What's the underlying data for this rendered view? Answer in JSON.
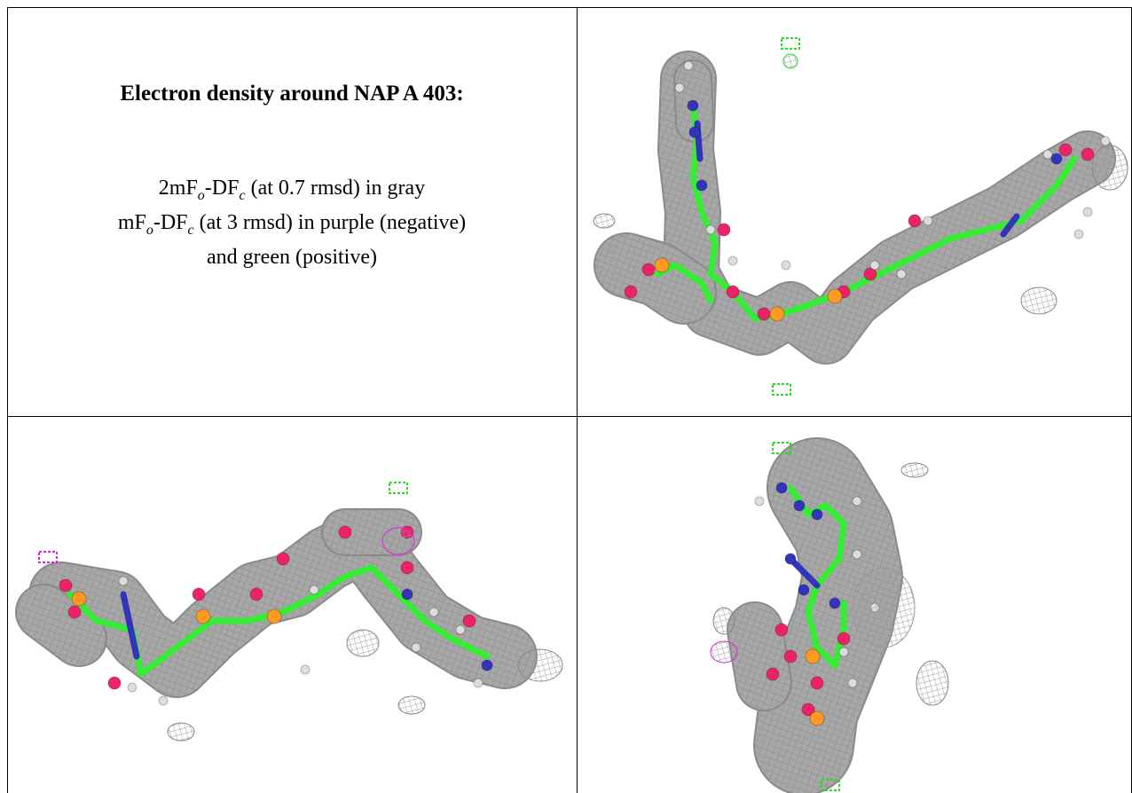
{
  "caption": {
    "title": "Electron density around NAP A 403:",
    "line1": {
      "pre": "2mF",
      "sub1": "o",
      "mid": "-DF",
      "sub2": "c",
      "post": " (at 0.7 rmsd) in gray"
    },
    "line2": {
      "pre": "mF",
      "sub1": "o",
      "mid": "-DF",
      "sub2": "c",
      "post": " (at 3 rmsd) in purple (negative)"
    },
    "line3": "and green (positive)"
  },
  "colors": {
    "mesh": "#8a8a8a",
    "carbon": "#33ee33",
    "nitrogen": "#3333bb",
    "oxygen": "#ee2266",
    "phosphorus": "#ff9922",
    "hydrogen": "#dddddd",
    "negative": "#dd22dd",
    "positive": "#22dd22"
  }
}
